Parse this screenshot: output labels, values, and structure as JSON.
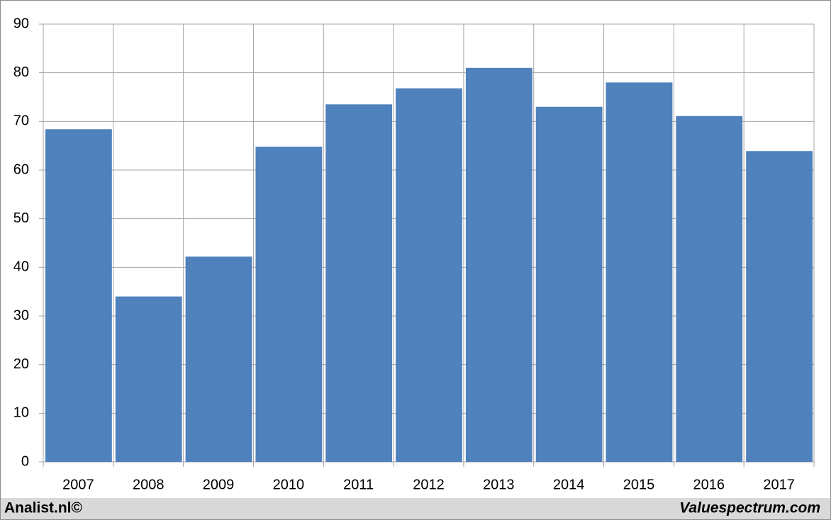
{
  "chart_data": {
    "type": "bar",
    "categories": [
      "2007",
      "2008",
      "2009",
      "2010",
      "2011",
      "2012",
      "2013",
      "2014",
      "2015",
      "2016",
      "2017"
    ],
    "values": [
      68.4,
      34,
      42.2,
      64.8,
      73.5,
      76.8,
      81,
      73,
      78,
      71.1,
      63.9
    ],
    "color": "#4f81bd",
    "ylim": [
      0,
      90
    ],
    "yticks": [
      0,
      10,
      20,
      30,
      40,
      50,
      60,
      70,
      80,
      90
    ],
    "grid": true
  },
  "footer": {
    "left": "Analist.nl©",
    "right": "Valuespectrum.com"
  }
}
